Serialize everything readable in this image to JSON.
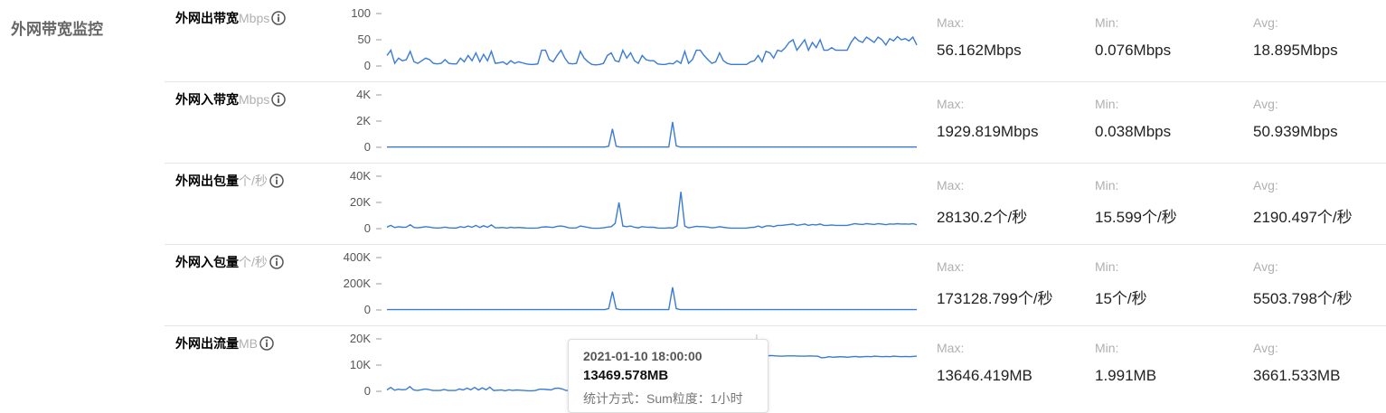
{
  "section_title": "外网带宽监控",
  "stat_labels": {
    "max": "Max:",
    "min": "Min:",
    "avg": "Avg:"
  },
  "rows": [
    {
      "name": "外网出带宽",
      "unit": "Mbps",
      "max": "56.162Mbps",
      "min": "0.076Mbps",
      "avg": "18.895Mbps"
    },
    {
      "name": "外网入带宽",
      "unit": "Mbps",
      "max": "1929.819Mbps",
      "min": "0.038Mbps",
      "avg": "50.939Mbps"
    },
    {
      "name": "外网出包量",
      "unit": "个/秒",
      "max": "28130.2个/秒",
      "min": "15.599个/秒",
      "avg": "2190.497个/秒"
    },
    {
      "name": "外网入包量",
      "unit": "个/秒",
      "max": "173128.799个/秒",
      "min": "15个/秒",
      "avg": "5503.798个/秒"
    },
    {
      "name": "外网出流量",
      "unit": "MB",
      "max": "13646.419MB",
      "min": "1.991MB",
      "avg": "3661.533MB"
    }
  ],
  "tooltip": {
    "time": "2021-01-10 18:00:00",
    "value": "13469.578MB",
    "method": "统计方式：Sum粒度：1小时"
  },
  "colors": {
    "line": "#3a7bd5",
    "muted": "#b0b0b0",
    "divider": "#e5e5e5"
  },
  "chart_data": [
    {
      "type": "line",
      "title": "外网出带宽",
      "ticks": [
        "100",
        "50",
        "0"
      ],
      "ylim": [
        0,
        100
      ],
      "values": [
        20,
        30,
        5,
        15,
        10,
        12,
        28,
        8,
        5,
        10,
        15,
        12,
        5,
        4,
        5,
        12,
        5,
        4,
        4,
        15,
        8,
        20,
        10,
        25,
        8,
        22,
        10,
        28,
        5,
        6,
        8,
        3,
        10,
        5,
        8,
        6,
        4,
        3,
        3,
        4,
        30,
        30,
        12,
        8,
        20,
        30,
        15,
        5,
        4,
        5,
        28,
        15,
        8,
        3,
        2,
        3,
        5,
        20,
        25,
        10,
        8,
        30,
        15,
        25,
        10,
        5,
        20,
        12,
        10,
        10,
        4,
        3,
        3,
        5,
        4,
        10,
        5,
        28,
        5,
        12,
        30,
        30,
        20,
        12,
        5,
        8,
        25,
        10,
        5,
        3,
        3,
        3,
        3,
        3,
        8,
        10,
        20,
        8,
        28,
        25,
        15,
        30,
        28,
        35,
        45,
        50,
        30,
        40,
        50,
        30,
        45,
        35,
        50,
        30,
        30,
        35,
        30,
        30,
        30,
        30,
        45,
        55,
        48,
        45,
        55,
        50,
        45,
        55,
        50,
        40,
        52,
        48,
        56,
        50,
        52,
        48,
        55,
        40
      ]
    },
    {
      "type": "line",
      "title": "外网入带宽",
      "ticks": [
        "4K",
        "2K",
        "0"
      ],
      "ylim": [
        0,
        4000
      ],
      "values": [
        20,
        20,
        20,
        20,
        20,
        20,
        20,
        20,
        20,
        20,
        20,
        20,
        20,
        20,
        20,
        20,
        20,
        20,
        20,
        20,
        20,
        20,
        20,
        20,
        20,
        20,
        20,
        20,
        20,
        20,
        20,
        20,
        20,
        20,
        20,
        20,
        20,
        20,
        20,
        20,
        20,
        20,
        20,
        20,
        20,
        20,
        20,
        20,
        20,
        20,
        20,
        20,
        20,
        20,
        20,
        20,
        20,
        20,
        20,
        80,
        1400,
        80,
        20,
        20,
        20,
        20,
        20,
        20,
        20,
        20,
        20,
        20,
        20,
        20,
        20,
        20,
        1930,
        100,
        20,
        20,
        20,
        20,
        20,
        20,
        20,
        20,
        20,
        20,
        20,
        20,
        20,
        20,
        20,
        20,
        20,
        20,
        20,
        20,
        20,
        20,
        20,
        20,
        20,
        20,
        20,
        20,
        20,
        20,
        20,
        20,
        20,
        20,
        20,
        20,
        20,
        20,
        20,
        20,
        20,
        20,
        20,
        20,
        20,
        20,
        20,
        20,
        20,
        20,
        20,
        20,
        20,
        20,
        20,
        20,
        20,
        20,
        20,
        20,
        20,
        20,
        20,
        20
      ]
    },
    {
      "type": "line",
      "title": "外网出包量",
      "ticks": [
        "40K",
        "20K",
        "0"
      ],
      "ylim": [
        0,
        40000
      ],
      "values": [
        1200,
        2500,
        800,
        1500,
        1000,
        1200,
        3000,
        900,
        600,
        1000,
        1500,
        1200,
        600,
        500,
        600,
        1200,
        600,
        500,
        500,
        1500,
        900,
        2000,
        1000,
        2500,
        900,
        2200,
        1000,
        2800,
        600,
        700,
        900,
        400,
        1000,
        600,
        900,
        700,
        500,
        400,
        400,
        500,
        1200,
        1400,
        1200,
        900,
        1800,
        2000,
        1500,
        600,
        500,
        600,
        2000,
        1500,
        900,
        400,
        300,
        400,
        600,
        1200,
        1500,
        4000,
        20000,
        2000,
        1500,
        2000,
        1000,
        600,
        1500,
        1200,
        1000,
        1000,
        500,
        400,
        400,
        600,
        500,
        2000,
        28130,
        2000,
        600,
        1200,
        1800,
        1500,
        1500,
        1200,
        600,
        900,
        1500,
        1000,
        600,
        400,
        400,
        400,
        400,
        400,
        900,
        1000,
        2000,
        900,
        2000,
        2200,
        1500,
        2500,
        2500,
        2800,
        3200,
        3500,
        2500,
        3000,
        3500,
        2500,
        3200,
        2800,
        3500,
        2500,
        2500,
        2800,
        2500,
        2500,
        2500,
        2500,
        3200,
        3800,
        3400,
        3200,
        3800,
        3500,
        3200,
        3800,
        3500,
        3000,
        3600,
        3400,
        3800,
        3500,
        3600,
        3400,
        3800,
        3000
      ]
    },
    {
      "type": "line",
      "title": "外网入包量",
      "ticks": [
        "400K",
        "200K",
        "0"
      ],
      "ylim": [
        0,
        400000
      ],
      "values": [
        3000,
        3000,
        3000,
        3000,
        3000,
        3000,
        3000,
        3000,
        3000,
        3000,
        3000,
        3000,
        3000,
        3000,
        3000,
        3000,
        3000,
        3000,
        3000,
        3000,
        3000,
        3000,
        3000,
        3000,
        3000,
        3000,
        3000,
        3000,
        3000,
        3000,
        3000,
        3000,
        3000,
        3000,
        3000,
        3000,
        3000,
        3000,
        3000,
        3000,
        3000,
        3000,
        3000,
        3000,
        3000,
        3000,
        3000,
        3000,
        3000,
        3000,
        3000,
        3000,
        3000,
        3000,
        3000,
        3000,
        3000,
        3000,
        3000,
        10000,
        140000,
        10000,
        3000,
        3000,
        3000,
        3000,
        3000,
        3000,
        3000,
        3000,
        3000,
        3000,
        3000,
        3000,
        3000,
        3000,
        173000,
        10000,
        3000,
        3000,
        3000,
        3000,
        3000,
        3000,
        3000,
        3000,
        3000,
        3000,
        3000,
        3000,
        3000,
        3000,
        3000,
        3000,
        3000,
        3000,
        3000,
        3000,
        3000,
        3000,
        3000,
        3000,
        3000,
        3000,
        3000,
        3000,
        3000,
        3000,
        3000,
        3000,
        3000,
        3000,
        3000,
        3000,
        3000,
        3000,
        3000,
        3000,
        3000,
        3000,
        3000,
        3000,
        3000,
        3000,
        3000,
        3000,
        3000,
        3000,
        3000,
        3000,
        3000,
        3000,
        3000,
        3000,
        3000,
        3000,
        3000,
        3000,
        3000,
        3000,
        3000,
        3000
      ]
    },
    {
      "type": "line",
      "title": "外网出流量",
      "ticks": [
        "20K",
        "10K",
        "0"
      ],
      "ylim": [
        0,
        20000
      ],
      "values": [
        500,
        1500,
        400,
        800,
        600,
        700,
        1800,
        500,
        300,
        600,
        900,
        700,
        300,
        300,
        300,
        700,
        300,
        300,
        300,
        900,
        500,
        1200,
        600,
        1500,
        500,
        1300,
        600,
        1600,
        300,
        400,
        500,
        200,
        600,
        300,
        500,
        400,
        300,
        200,
        200,
        300,
        800,
        800,
        700,
        500,
        1100,
        1200,
        900,
        300,
        300,
        300,
        1200,
        900,
        500,
        200,
        200,
        200,
        300,
        700,
        900,
        600,
        800,
        600,
        400,
        500,
        300,
        300,
        600,
        500,
        400,
        400,
        200,
        200,
        200,
        300,
        300,
        600,
        500,
        600,
        300,
        500,
        700,
        600,
        600,
        500,
        300,
        500,
        700,
        500,
        300,
        200,
        200,
        200,
        200,
        200,
        500,
        600,
        1000,
        13470,
        13400,
        13500,
        13600,
        13646,
        13500,
        13400,
        13400,
        13500,
        13500,
        13500,
        13400,
        13400,
        13400,
        13500,
        13400,
        13400,
        12800,
        12900,
        13200,
        13000,
        13100,
        13200,
        13100,
        13000,
        13200,
        13300,
        13100,
        13200,
        13300,
        13200,
        13400,
        13300,
        13200,
        13300,
        13200,
        13400,
        13300,
        13200,
        13300,
        13200,
        13300,
        13400
      ]
    }
  ]
}
